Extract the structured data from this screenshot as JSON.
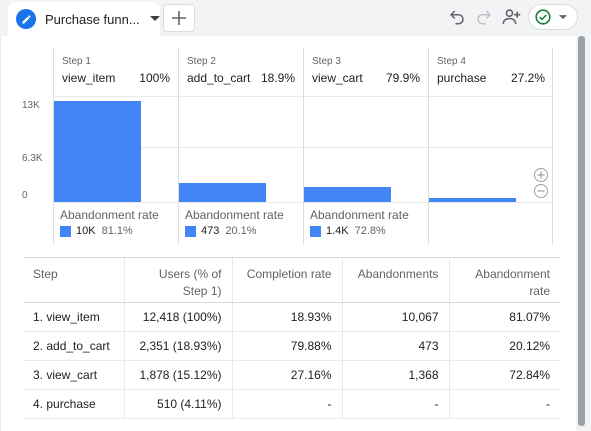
{
  "tab": {
    "title": "Purchase funn..."
  },
  "icons": {
    "tab": "pencil-icon",
    "caret": "caret-down-icon",
    "add_tab": "plus-icon",
    "undo": "undo-icon",
    "redo": "redo-icon",
    "share": "person-add-icon",
    "status": "check-circle-icon",
    "zoom_in": "zoom-in-icon",
    "zoom_out": "zoom-out-icon"
  },
  "colors": {
    "bar": "#4285f4",
    "accent": "#1a73e8",
    "status": "#188038"
  },
  "funnel": {
    "steps": [
      {
        "label": "Step 1",
        "name": "view_item",
        "pct": "100%",
        "abandonment_label": "Abandonment rate",
        "abandon_count": "10K",
        "abandon_rate": "81.1%"
      },
      {
        "label": "Step 2",
        "name": "add_to_cart",
        "pct": "18.9%",
        "abandonment_label": "Abandonment rate",
        "abandon_count": "473",
        "abandon_rate": "20.1%"
      },
      {
        "label": "Step 3",
        "name": "view_cart",
        "pct": "79.9%",
        "abandonment_label": "Abandonment rate",
        "abandon_count": "1.4K",
        "abandon_rate": "72.8%"
      },
      {
        "label": "Step 4",
        "name": "purchase",
        "pct": "27.2%"
      }
    ],
    "y_ticks": [
      "13K",
      "6.3K",
      "0"
    ]
  },
  "chart_data": {
    "type": "bar",
    "categories": [
      "view_item",
      "add_to_cart",
      "view_cart",
      "purchase"
    ],
    "values": [
      12418,
      2351,
      1878,
      510
    ],
    "ylim": [
      0,
      13000
    ],
    "grid": true
  },
  "table": {
    "headers": [
      "Step",
      "Users (% of Step 1)",
      "Completion rate",
      "Abandonments",
      "Abandonment rate"
    ],
    "rows": [
      [
        "1. view_item",
        "12,418 (100%)",
        "18.93%",
        "10,067",
        "81.07%"
      ],
      [
        "2. add_to_cart",
        "2,351 (18.93%)",
        "79.88%",
        "473",
        "20.12%"
      ],
      [
        "3. view_cart",
        "1,878 (15.12%)",
        "27.16%",
        "1,368",
        "72.84%"
      ],
      [
        "4. purchase",
        "510 (4.11%)",
        "-",
        "-",
        "-"
      ]
    ]
  }
}
